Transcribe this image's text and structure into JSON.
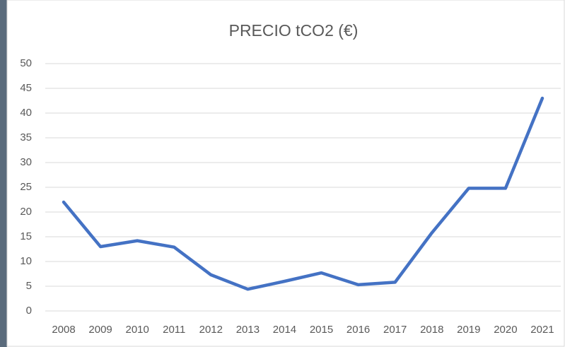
{
  "chart_data": {
    "type": "line",
    "title": "PRECIO tCO2 (€)",
    "categories": [
      "2008",
      "2009",
      "2010",
      "2011",
      "2012",
      "2013",
      "2014",
      "2015",
      "2016",
      "2017",
      "2018",
      "2019",
      "2020",
      "2021"
    ],
    "values": [
      22,
      13,
      14.2,
      12.9,
      7.3,
      4.4,
      6,
      7.7,
      5.3,
      5.8,
      15.8,
      24.8,
      24.8,
      43
    ],
    "color": "#4472c4",
    "ylim": [
      0,
      50
    ],
    "yticks": [
      0,
      5,
      10,
      15,
      20,
      25,
      30,
      35,
      40,
      45,
      50
    ],
    "grid": true
  }
}
